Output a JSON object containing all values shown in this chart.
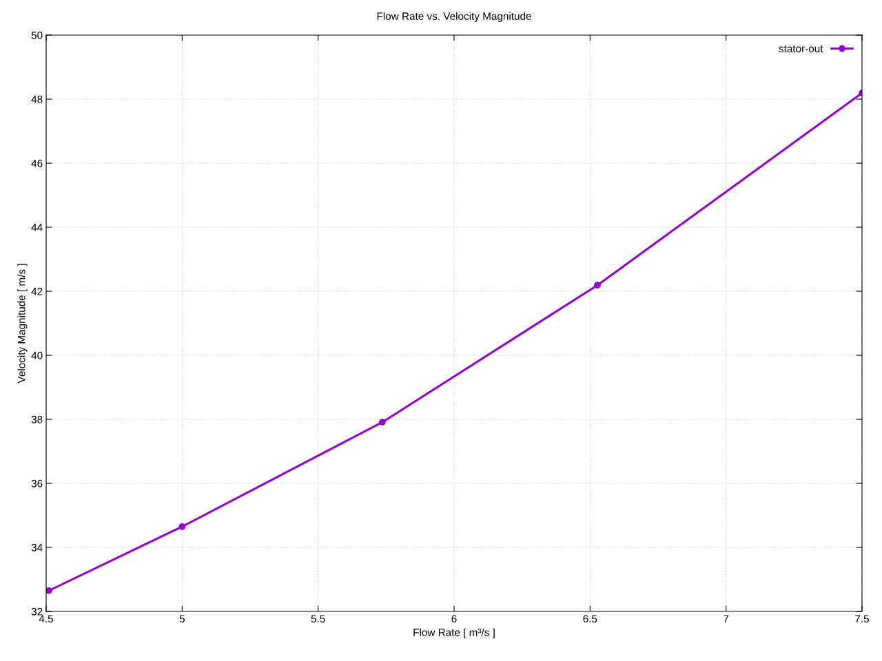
{
  "chart_data": {
    "type": "line",
    "title": "Flow Rate vs. Velocity Magnitude",
    "xlabel": "Flow Rate [ m³/s ]",
    "ylabel": "Velocity Magnitude [ m/s ]",
    "series": [
      {
        "name": "stator-out",
        "color": "#9400d3",
        "x": [
          4.51,
          5.0,
          5.736,
          6.527,
          7.5
        ],
        "values": [
          32.65,
          34.65,
          37.91,
          42.19,
          48.19
        ]
      }
    ],
    "xlim": [
      4.5,
      7.5
    ],
    "xticks": [
      4.5,
      5,
      5.5,
      6,
      6.5,
      7,
      7.5
    ],
    "ylim": [
      32,
      50
    ],
    "yticks": [
      32,
      34,
      36,
      38,
      40,
      42,
      44,
      46,
      48,
      50
    ],
    "grid": true,
    "legend": "top right",
    "marker": "circle",
    "line_style": "solid"
  }
}
